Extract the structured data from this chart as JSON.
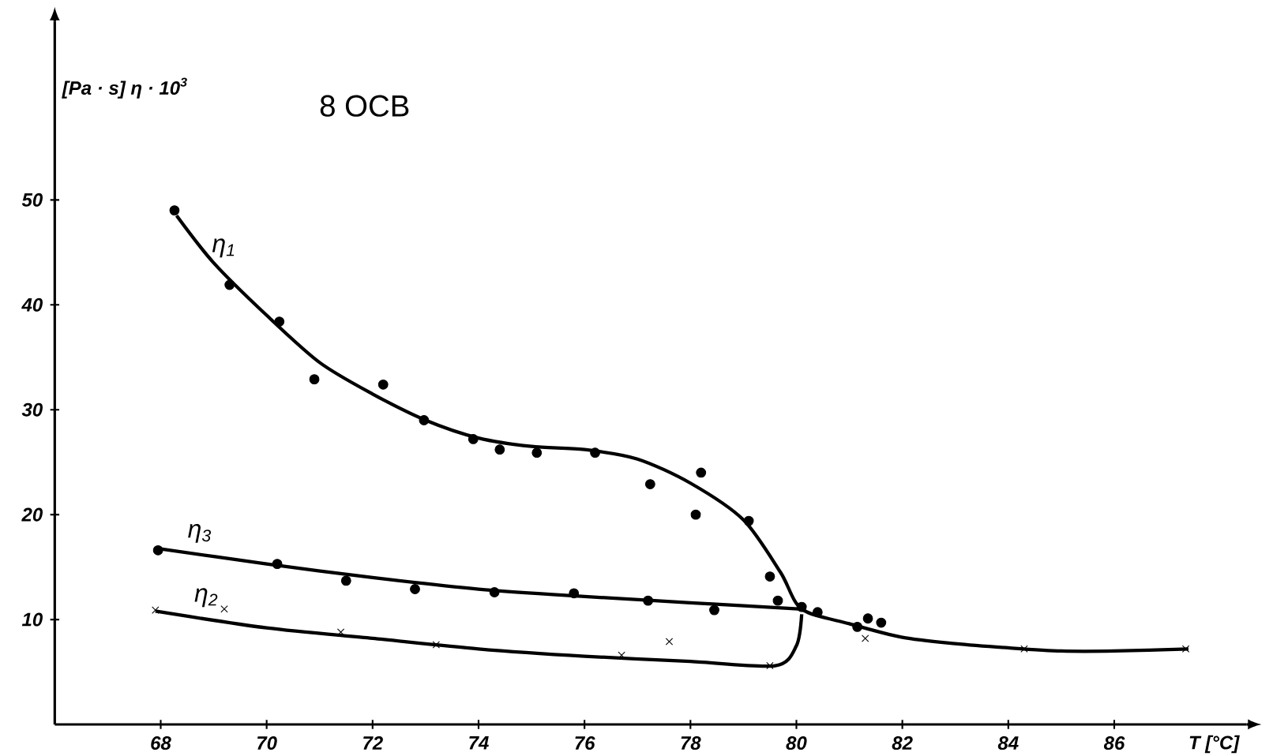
{
  "chart_data": {
    "type": "scatter",
    "title": "8 OCB",
    "xlabel": "T [°C]",
    "ylabel": "[Pa · s]  η · 10$^{3}$",
    "xlim": [
      66,
      88.5
    ],
    "ylim": [
      0,
      67
    ],
    "xticks": [
      68,
      70,
      72,
      74,
      76,
      78,
      80,
      82,
      84,
      86
    ],
    "yticks": [
      10,
      20,
      30,
      40,
      50
    ],
    "grid": false,
    "series": [
      {
        "color": "#000000",
        "marker": "circle",
        "x": [
          68.26,
          69.3,
          70.24,
          70.9,
          72.2,
          72.97,
          73.9,
          74.4,
          75.1,
          76.2,
          77.24,
          78.2,
          78.1,
          79.1,
          79.5,
          80.1,
          80.4,
          81.35
        ],
        "values": [
          49.0,
          41.9,
          38.4,
          32.9,
          32.4,
          29.0,
          27.2,
          26.2,
          25.9,
          25.9,
          22.9,
          24.0,
          20.0,
          19.4,
          14.1,
          11.2,
          10.7,
          10.1
        ]
      },
      {
        "color": "#000000",
        "marker": "circle",
        "x": [
          67.95,
          70.2,
          71.5,
          72.8,
          74.3,
          75.8,
          77.2,
          78.45,
          79.65,
          81.15,
          81.6
        ],
        "values": [
          16.6,
          15.3,
          13.7,
          12.9,
          12.6,
          12.5,
          11.8,
          10.9,
          11.8,
          9.3,
          9.7
        ]
      },
      {
        "color": "#000000",
        "marker": "cross",
        "x": [
          67.9,
          69.2,
          71.4,
          73.2,
          76.7,
          77.6,
          79.5,
          81.3,
          84.3,
          87.35
        ],
        "values": [
          10.9,
          11.0,
          8.8,
          7.6,
          6.6,
          7.9,
          5.6,
          8.2,
          7.2,
          7.2
        ]
      },
      {
        "type": "line",
        "name": "η$_{1}$",
        "color": "#000000",
        "marker": "none",
        "x": [
          68.3,
          69,
          70,
          71,
          72,
          73,
          74,
          75,
          76,
          77,
          78,
          79,
          79.7,
          80.1,
          81,
          82,
          83,
          84,
          85,
          86,
          87.4
        ],
        "values": [
          48.5,
          44,
          39,
          34.5,
          31.5,
          29,
          27.3,
          26.5,
          26.2,
          25.3,
          23,
          19.5,
          14.5,
          11,
          9.6,
          8.3,
          7.7,
          7.3,
          7.0,
          7.0,
          7.2
        ]
      },
      {
        "type": "line",
        "name": "η$_{3}$",
        "color": "#000000",
        "marker": "none",
        "x": [
          67.9,
          70,
          72,
          74,
          76,
          78,
          80.1
        ],
        "values": [
          16.8,
          15.3,
          14,
          12.9,
          12.2,
          11.6,
          11.0
        ]
      },
      {
        "type": "line",
        "name": "η$_{2}$",
        "color": "#000000",
        "marker": "none",
        "x": [
          67.9,
          70,
          72,
          74,
          76,
          78,
          79.6,
          80,
          80.1
        ],
        "values": [
          10.8,
          9.2,
          8.2,
          7.2,
          6.5,
          6.0,
          5.6,
          7.5,
          10.5
        ]
      }
    ]
  }
}
